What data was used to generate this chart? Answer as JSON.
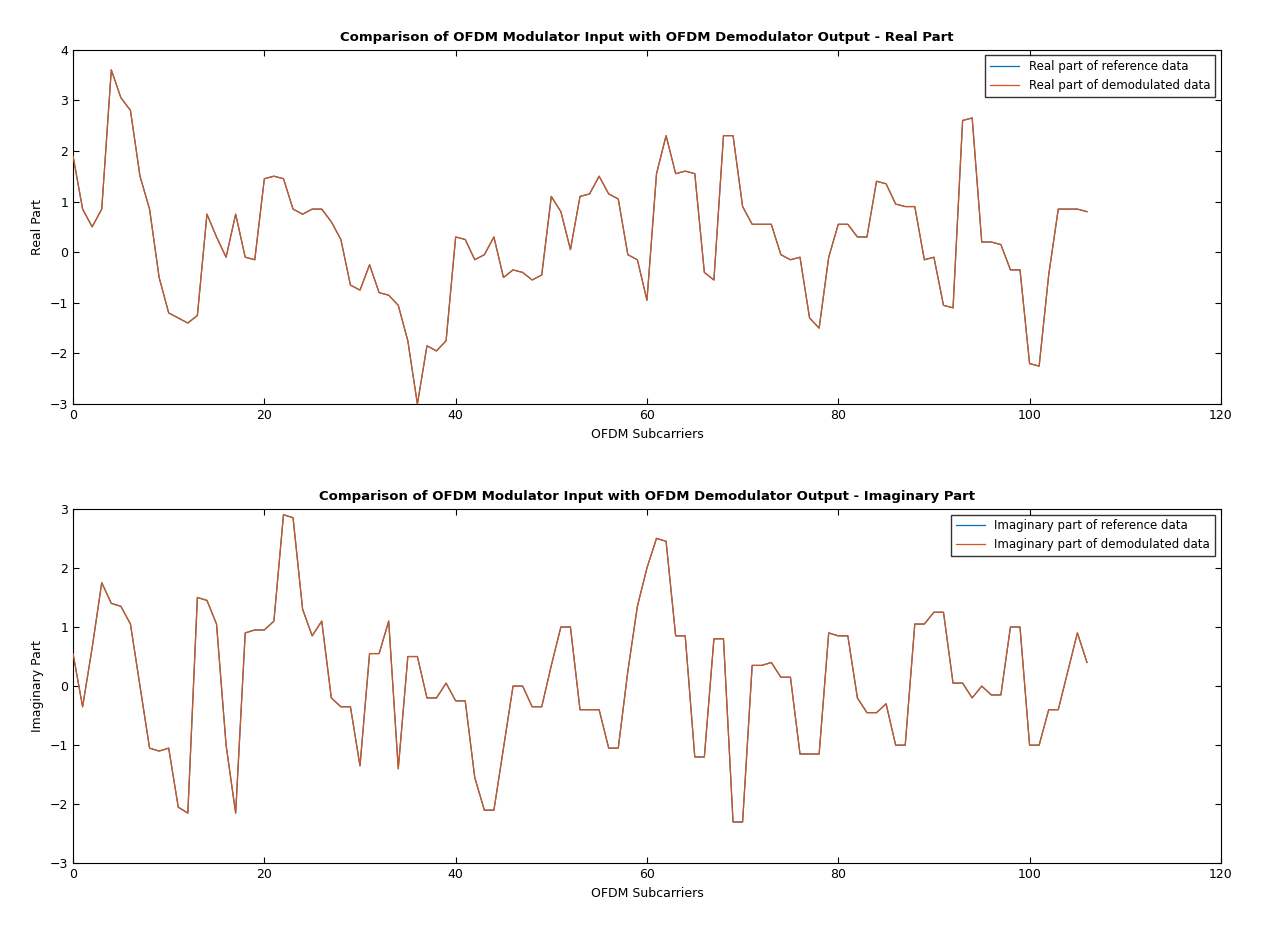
{
  "title_real": "Comparison of OFDM Modulator Input with OFDM Demodulator Output - Real Part",
  "title_imag": "Comparison of OFDM Modulator Input with OFDM Demodulator Output - Imaginary Part",
  "xlabel": "OFDM Subcarriers",
  "ylabel_real": "Real Part",
  "ylabel_imag": "Imaginary Part",
  "legend_ref_real": "Real part of reference data",
  "legend_demod_real": "Real part of demodulated data",
  "legend_ref_imag": "Imaginary part of reference data",
  "legend_demod_imag": "Imaginary part of demodulated data",
  "xlim": [
    0,
    120
  ],
  "ylim_real": [
    -3,
    4
  ],
  "ylim_imag": [
    -3,
    3
  ],
  "xticks": [
    0,
    20,
    40,
    60,
    80,
    100,
    120
  ],
  "yticks_real": [
    -3,
    -2,
    -1,
    0,
    1,
    2,
    3,
    4
  ],
  "yticks_imag": [
    -3,
    -2,
    -1,
    0,
    1,
    2,
    3
  ],
  "color_ref": "#0072BD",
  "color_demod": "#D95319",
  "linewidth": 0.9,
  "figsize": [
    12.64,
    9.31
  ],
  "dpi": 100,
  "background_color": "#ffffff",
  "real_signal": [
    1.9,
    0.85,
    0.5,
    0.85,
    3.6,
    3.05,
    2.8,
    1.5,
    0.85,
    -0.5,
    -1.2,
    -1.3,
    -1.4,
    -1.25,
    0.75,
    0.3,
    -0.1,
    0.75,
    -0.1,
    -0.15,
    1.45,
    1.5,
    1.45,
    0.85,
    0.75,
    0.85,
    0.85,
    0.6,
    0.25,
    -0.65,
    -0.75,
    -0.25,
    -0.8,
    -0.85,
    -1.05,
    -1.75,
    -3.0,
    -1.85,
    -1.95,
    -1.75,
    0.3,
    0.25,
    -0.15,
    -0.05,
    0.3,
    -0.5,
    -0.35,
    -0.4,
    -0.55,
    -0.45,
    1.1,
    0.8,
    0.05,
    1.1,
    1.15,
    1.5,
    1.15,
    1.05,
    -0.05,
    -0.15,
    -0.95,
    1.55,
    2.3,
    1.55,
    1.6,
    1.55,
    -0.4,
    -0.55,
    2.3,
    2.3,
    0.9,
    0.55,
    0.55,
    0.55,
    -0.05,
    -0.15,
    -0.1,
    -1.3,
    -1.5,
    -0.1,
    0.55,
    0.55,
    0.3,
    0.3,
    1.4,
    1.35,
    0.95,
    0.9,
    0.9,
    -0.15,
    -0.1,
    -1.05,
    -1.1,
    2.6,
    2.65,
    0.2,
    0.2,
    0.15,
    -0.35,
    -0.35,
    -2.2,
    -2.25,
    -0.45,
    0.85,
    0.85,
    0.85,
    0.8
  ],
  "imag_signal": [
    0.55,
    -0.35,
    0.65,
    1.75,
    1.4,
    1.35,
    1.05,
    0.0,
    -1.05,
    -1.1,
    -1.05,
    -2.05,
    -2.15,
    1.5,
    1.45,
    1.05,
    -1.0,
    -2.15,
    0.9,
    0.95,
    0.95,
    1.1,
    2.9,
    2.85,
    1.3,
    0.85,
    1.1,
    -0.2,
    -0.35,
    -0.35,
    -1.35,
    0.55,
    0.55,
    1.1,
    -1.4,
    0.5,
    0.5,
    -0.2,
    -0.2,
    0.05,
    -0.25,
    -0.25,
    -1.55,
    -2.1,
    -2.1,
    -1.05,
    0.0,
    0.0,
    -0.35,
    -0.35,
    0.35,
    1.0,
    1.0,
    -0.4,
    -0.4,
    -0.4,
    -1.05,
    -1.05,
    0.25,
    1.35,
    2.0,
    2.5,
    2.45,
    0.85,
    0.85,
    -1.2,
    -1.2,
    0.8,
    0.8,
    -2.3,
    -2.3,
    0.35,
    0.35,
    0.4,
    0.15,
    0.15,
    -1.15,
    -1.15,
    -1.15,
    0.9,
    0.85,
    0.85,
    -0.2,
    -0.45,
    -0.45,
    -0.3,
    -1.0,
    -1.0,
    1.05,
    1.05,
    1.25,
    1.25,
    0.05,
    0.05,
    -0.2,
    0.0,
    -0.15,
    -0.15,
    1.0,
    1.0,
    -1.0,
    -1.0,
    -0.4,
    -0.4,
    0.25,
    0.9,
    0.4
  ]
}
